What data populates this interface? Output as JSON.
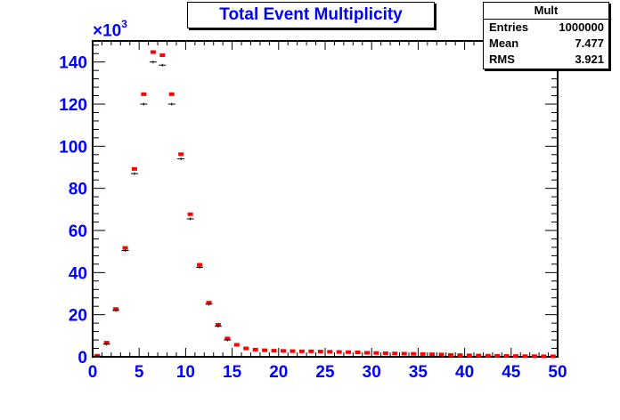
{
  "title": "Total Event Multiplicity",
  "stats": {
    "name": "Mult",
    "rows": [
      {
        "label": "Entries",
        "value": "1000000"
      },
      {
        "label": "Mean",
        "value": "7.477"
      },
      {
        "label": "RMS",
        "value": "3.921"
      }
    ]
  },
  "y_exponent": {
    "prefix": "×10",
    "power": "3"
  },
  "colors": {
    "axis_labels": "#0000ff",
    "series_red": "#ff0000",
    "series_black": "#000000"
  },
  "chart_data": {
    "type": "scatter",
    "title": "Total Event Multiplicity",
    "xlabel": "",
    "ylabel": "",
    "xlim": [
      0,
      50
    ],
    "ylim": [
      0,
      150
    ],
    "y_unit_scale": "x10^3",
    "x_ticks": [
      0,
      5,
      10,
      15,
      20,
      25,
      30,
      35,
      40,
      45,
      50
    ],
    "y_ticks": [
      0,
      20,
      40,
      60,
      80,
      100,
      120,
      140
    ],
    "grid": false,
    "series": [
      {
        "color": "#ff0000",
        "x": [
          0.5,
          1.5,
          2.5,
          3.5,
          4.5,
          5.5,
          6.5,
          7.5,
          8.5,
          9.5,
          10.5,
          11.5,
          12.5,
          13.5,
          14.5,
          15.5,
          16.5,
          17.5,
          18.5,
          19.5,
          20.5,
          21.5,
          22.5,
          23.5,
          24.5,
          25.5,
          26.5,
          27.5,
          28.5,
          29.5,
          30.5,
          31.5,
          32.5,
          33.5,
          34.5,
          35.5,
          36.5,
          37.5,
          38.5,
          39.5,
          40.5,
          41.5,
          42.5,
          43.5,
          44.5,
          45.5,
          46.5,
          47.5,
          48.5,
          49.5
        ],
        "y": [
          0.3,
          6.5,
          22.5,
          51.5,
          89.0,
          124.5,
          144.5,
          143.0,
          124.5,
          96.0,
          67.5,
          43.5,
          25.5,
          15.0,
          8.5,
          5.5,
          3.8,
          3.2,
          2.9,
          2.7,
          2.6,
          2.5,
          2.4,
          2.4,
          2.3,
          2.2,
          2.1,
          2.0,
          1.9,
          1.7,
          1.6,
          1.5,
          1.4,
          1.3,
          1.2,
          1.1,
          1.0,
          0.9,
          0.7,
          0.6,
          0.5,
          0.4,
          0.3,
          0.25,
          0.2,
          0.15,
          0.1,
          0.1,
          0.05,
          0.05
        ]
      },
      {
        "color": "#000000",
        "x": [
          0.5,
          1.5,
          2.5,
          3.5,
          4.5,
          5.5,
          6.5,
          7.5,
          8.5,
          9.5,
          10.5,
          11.5,
          12.5,
          13.5,
          14.5
        ],
        "y": [
          0.3,
          6.0,
          22.0,
          50.5,
          87.0,
          120.0,
          140.0,
          138.5,
          120.0,
          94.0,
          65.5,
          42.5,
          25.0,
          14.5,
          8.0
        ]
      }
    ]
  }
}
